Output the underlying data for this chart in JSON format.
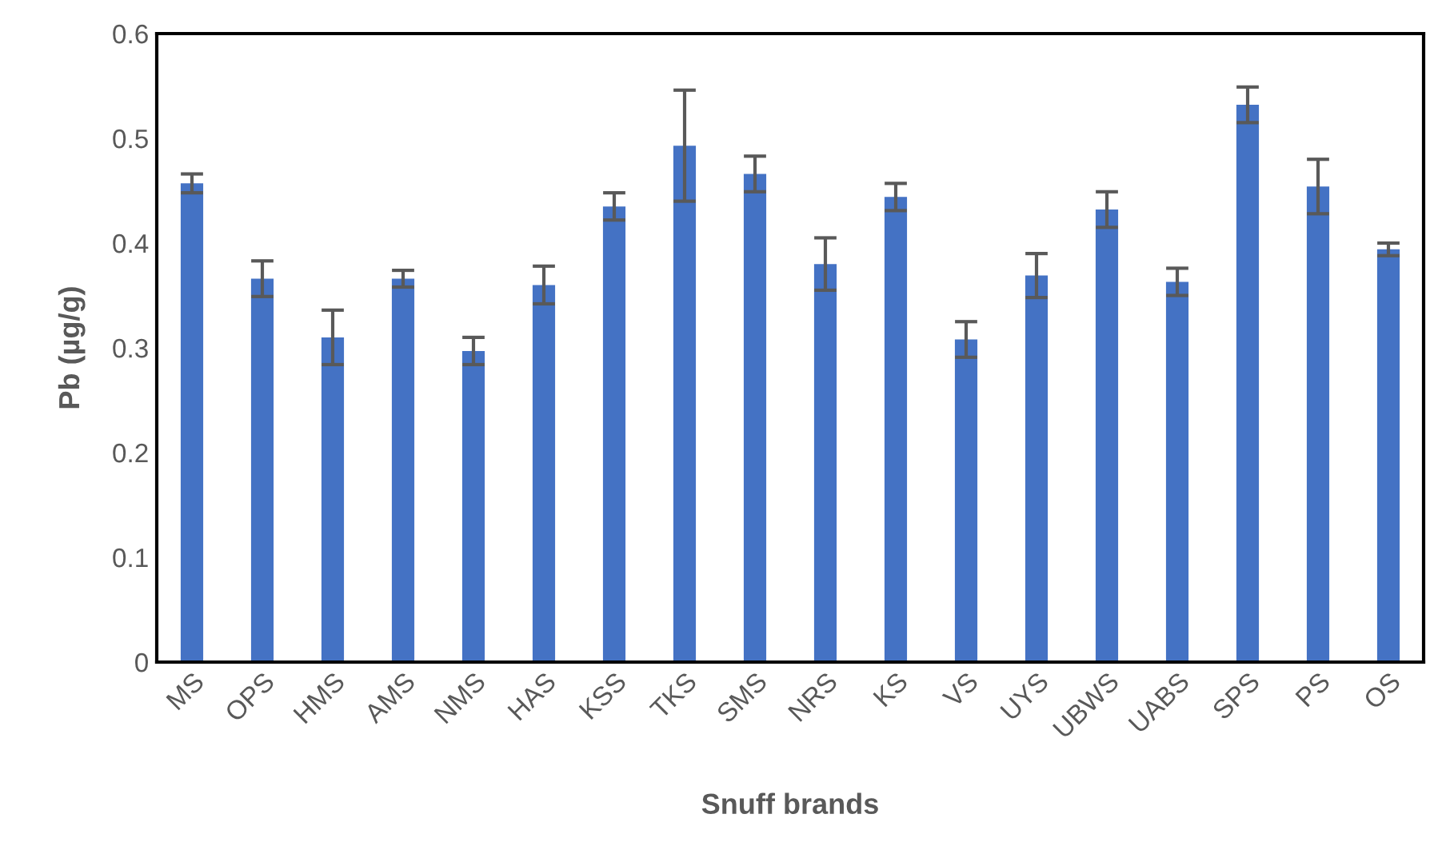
{
  "chart_data": {
    "type": "bar",
    "xlabel": "Snuff brands",
    "ylabel": "Pb (µg/g)",
    "categories": [
      "MS",
      "OPS",
      "HMS",
      "AMS",
      "NMS",
      "HAS",
      "KSS",
      "TKS",
      "SMS",
      "NRS",
      "KS",
      "VS",
      "UYS",
      "UBWS",
      "UABS",
      "SPS",
      "PS",
      "OS"
    ],
    "values": [
      0.457,
      0.366,
      0.31,
      0.366,
      0.297,
      0.36,
      0.435,
      0.493,
      0.466,
      0.38,
      0.444,
      0.308,
      0.369,
      0.432,
      0.363,
      0.532,
      0.454,
      0.394
    ],
    "errors": [
      0.009,
      0.017,
      0.026,
      0.008,
      0.013,
      0.018,
      0.013,
      0.053,
      0.017,
      0.025,
      0.013,
      0.017,
      0.021,
      0.017,
      0.013,
      0.017,
      0.026,
      0.006
    ],
    "color": "#4472c4",
    "ylim": [
      0,
      0.6
    ],
    "yticks": [
      {
        "value": 0,
        "label": "0"
      },
      {
        "value": 0.1,
        "label": "0.1"
      },
      {
        "value": 0.2,
        "label": "0.2"
      },
      {
        "value": 0.3,
        "label": "0.3"
      },
      {
        "value": 0.4,
        "label": "0.4"
      },
      {
        "value": 0.5,
        "label": "0.5"
      },
      {
        "value": 0.6,
        "label": "0.6"
      }
    ],
    "grid": false
  }
}
